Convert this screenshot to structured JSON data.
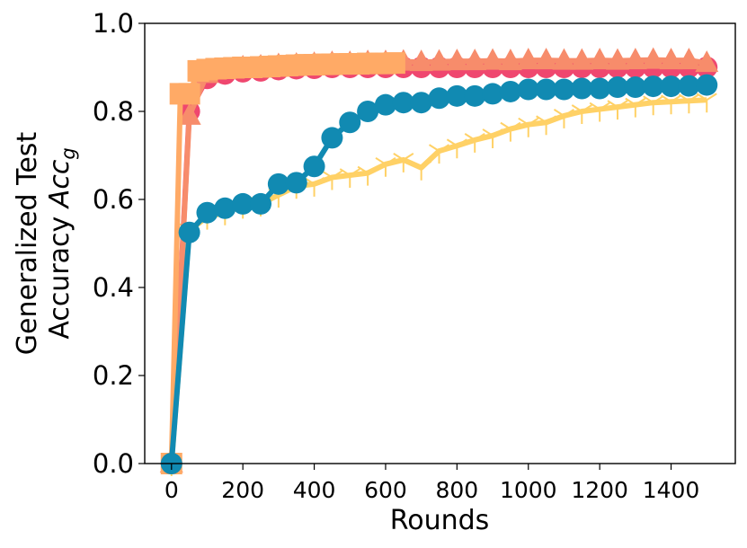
{
  "chart_data": {
    "type": "line",
    "xlabel": "Rounds",
    "ylabel_line1": "Generalized Test",
    "ylabel_line2_text": "Accuracy ",
    "ylabel_line2_math": "Acc",
    "ylabel_line2_sub": "g",
    "xlim": [
      -75,
      1580
    ],
    "ylim": [
      0.0,
      1.0
    ],
    "xticks": [
      0,
      200,
      400,
      600,
      800,
      1000,
      1200,
      1400
    ],
    "xtick_labels": [
      "0",
      "200",
      "400",
      "600",
      "800",
      "1000",
      "1200",
      "1400"
    ],
    "yticks": [
      0.0,
      0.2,
      0.4,
      0.6,
      0.8,
      1.0
    ],
    "ytick_labels": [
      "0.0",
      "0.2",
      "0.4",
      "0.6",
      "0.8",
      "1.0"
    ],
    "grid": false,
    "series": [
      {
        "color": "#ffd166",
        "marker": "tri_down",
        "x": [
          0,
          50,
          100,
          150,
          200,
          250,
          300,
          350,
          400,
          450,
          500,
          550,
          600,
          650,
          700,
          750,
          800,
          850,
          900,
          950,
          1000,
          1050,
          1100,
          1150,
          1200,
          1250,
          1300,
          1350,
          1400,
          1450,
          1500
        ],
        "values": [
          0.0,
          0.53,
          0.56,
          0.57,
          0.585,
          0.59,
          0.61,
          0.63,
          0.635,
          0.65,
          0.655,
          0.66,
          0.68,
          0.69,
          0.672,
          0.71,
          0.722,
          0.735,
          0.745,
          0.76,
          0.77,
          0.775,
          0.79,
          0.8,
          0.805,
          0.81,
          0.815,
          0.82,
          0.822,
          0.824,
          0.826
        ]
      },
      {
        "color": "#ef476f",
        "marker": "circle",
        "x": [
          0,
          50,
          100,
          150,
          200,
          250,
          300,
          350,
          400,
          450,
          500,
          550,
          600,
          650,
          700,
          750,
          800,
          850,
          900,
          950,
          1000,
          1050,
          1100,
          1150,
          1200,
          1250,
          1300,
          1350,
          1400,
          1450,
          1500
        ],
        "values": [
          0.0,
          0.8,
          0.875,
          0.885,
          0.89,
          0.892,
          0.895,
          0.897,
          0.898,
          0.9,
          0.9,
          0.9,
          0.9,
          0.9,
          0.9,
          0.9,
          0.9,
          0.9,
          0.9,
          0.9,
          0.9,
          0.9,
          0.9,
          0.9,
          0.9,
          0.9,
          0.9,
          0.9,
          0.9,
          0.9,
          0.9
        ]
      },
      {
        "color": "#f78c6b",
        "marker": "triangle",
        "x": [
          0,
          50,
          100,
          150,
          200,
          250,
          300,
          350,
          400,
          450,
          500,
          550,
          600,
          650,
          700,
          750,
          800,
          850,
          900,
          950,
          1000,
          1050,
          1100,
          1150,
          1200,
          1250,
          1300,
          1350,
          1400,
          1450,
          1500
        ],
        "values": [
          0.0,
          0.79,
          0.885,
          0.895,
          0.9,
          0.902,
          0.905,
          0.906,
          0.908,
          0.91,
          0.91,
          0.912,
          0.912,
          0.913,
          0.912,
          0.913,
          0.914,
          0.914,
          0.915,
          0.914,
          0.916,
          0.916,
          0.915,
          0.915,
          0.916,
          0.915,
          0.916,
          0.917,
          0.916,
          0.916,
          0.91
        ]
      },
      {
        "color": "#ffaa66",
        "marker": "square",
        "x": [
          0,
          25,
          50,
          75,
          100,
          125,
          150,
          175,
          200,
          225,
          250,
          275,
          300,
          325,
          350,
          375,
          400,
          425,
          450,
          475,
          500,
          525,
          550,
          575,
          600,
          625
        ],
        "values": [
          0.0,
          0.84,
          0.84,
          0.892,
          0.895,
          0.897,
          0.898,
          0.899,
          0.9,
          0.9,
          0.901,
          0.902,
          0.903,
          0.904,
          0.905,
          0.906,
          0.906,
          0.907,
          0.907,
          0.908,
          0.908,
          0.908,
          0.909,
          0.909,
          0.909,
          0.91
        ]
      },
      {
        "color": "#118ab2",
        "marker": "circle",
        "x": [
          0,
          50,
          100,
          150,
          200,
          250,
          300,
          350,
          400,
          450,
          500,
          550,
          600,
          650,
          700,
          750,
          800,
          850,
          900,
          950,
          1000,
          1050,
          1100,
          1150,
          1200,
          1250,
          1300,
          1350,
          1400,
          1450,
          1500
        ],
        "values": [
          0.0,
          0.525,
          0.57,
          0.58,
          0.59,
          0.59,
          0.635,
          0.638,
          0.675,
          0.74,
          0.775,
          0.8,
          0.815,
          0.82,
          0.82,
          0.83,
          0.835,
          0.835,
          0.84,
          0.845,
          0.85,
          0.85,
          0.85,
          0.852,
          0.852,
          0.855,
          0.855,
          0.857,
          0.857,
          0.858,
          0.86
        ]
      }
    ]
  }
}
